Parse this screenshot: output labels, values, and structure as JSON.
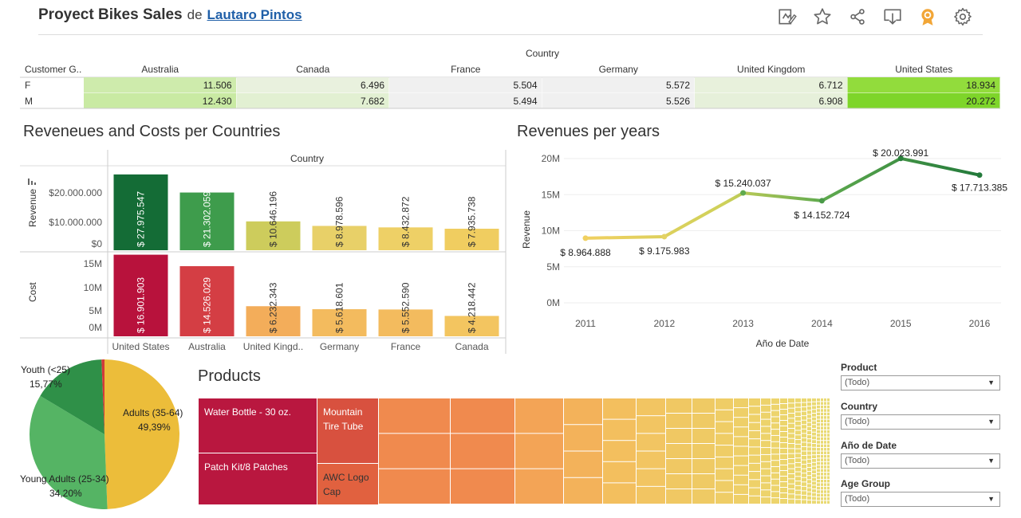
{
  "header": {
    "title": "Proyect Bikes Sales",
    "by": "de",
    "author": "Lautaro Pintos"
  },
  "toolbar": {
    "icons": [
      "edit-icon",
      "star-icon",
      "share-icon",
      "download-icon",
      "badge-icon",
      "gear-icon"
    ]
  },
  "crosstab": {
    "group_label": "Country",
    "row_header": "Customer G..",
    "countries": [
      "Australia",
      "Canada",
      "France",
      "Germany",
      "United Kingdom",
      "United States"
    ],
    "rows": [
      {
        "label": "F",
        "values": [
          "11.506",
          "6.496",
          "5.504",
          "5.572",
          "6.712",
          "18.934"
        ]
      },
      {
        "label": "M",
        "values": [
          "12.430",
          "7.682",
          "5.494",
          "5.526",
          "6.908",
          "20.272"
        ]
      }
    ],
    "raw": [
      [
        11506,
        6496,
        5504,
        5572,
        6712,
        18934
      ],
      [
        12430,
        7682,
        5494,
        5526,
        6908,
        20272
      ]
    ]
  },
  "bars": {
    "title": "Reveneues and Costs per Countries",
    "header": "Country",
    "revenue_label": "Revenue",
    "cost_label": "Cost",
    "revenue_ticks": [
      "$20.000.000",
      "$10.000.000",
      "$0"
    ],
    "cost_ticks": [
      "15M",
      "10M",
      "5M",
      "0M"
    ],
    "categories": [
      "United States",
      "Australia",
      "United Kingd..",
      "Germany",
      "France",
      "Canada"
    ]
  },
  "line": {
    "title": "Revenues per years",
    "ylabel": "Revenue",
    "xlabel": "Año de Date",
    "yticks": [
      "20M",
      "15M",
      "10M",
      "5M",
      "0M"
    ]
  },
  "pie": {
    "labels": [
      {
        "name": "Youth (<25)",
        "pct": "15,77%"
      },
      {
        "name": "Adults (35-64)",
        "pct": "49,39%"
      },
      {
        "name": "Young Adults (25-34)",
        "pct": "34,20%"
      }
    ]
  },
  "treemap": {
    "title": "Products",
    "labels": [
      "Water Bottle - 30 oz.",
      "Patch Kit/8 Patches",
      "Mountain Tire Tube",
      "AWC Logo Cap"
    ]
  },
  "filters": [
    {
      "label": "Product",
      "value": "(Todo)"
    },
    {
      "label": "Country",
      "value": "(Todo)"
    },
    {
      "label": "Año de Date",
      "value": "(Todo)"
    },
    {
      "label": "Age Group",
      "value": "(Todo)"
    }
  ],
  "chart_data": [
    {
      "type": "bar",
      "title": "Reveneues and Costs per Countries",
      "categories": [
        "United States",
        "Australia",
        "United Kingd..",
        "Germany",
        "France",
        "Canada"
      ],
      "series": [
        {
          "name": "Revenue",
          "values": [
            27975547,
            21302059,
            10646196,
            8978596,
            8432872,
            7935738
          ],
          "labels": [
            "$ 27.975.547",
            "$ 21.302.059",
            "$ 10.646.196",
            "$ 8.978.596",
            "$ 8.432.872",
            "$ 7.935.738"
          ],
          "colors": [
            "#146c36",
            "#3e9c4c",
            "#cdcc5c",
            "#e8d068",
            "#eed066",
            "#f0cd60"
          ]
        },
        {
          "name": "Cost",
          "values": [
            16901903,
            14526029,
            6232343,
            5618601,
            5552590,
            4218442
          ],
          "labels": [
            "$ 16.901.903",
            "$ 14.526.029",
            "$ 6.232.343",
            "$ 5.618.601",
            "$ 5.552.590",
            "$ 4.218.442"
          ],
          "colors": [
            "#b8123c",
            "#d43e44",
            "#f3ad5a",
            "#f3bb5e",
            "#f3bb5e",
            "#f3c560"
          ]
        }
      ],
      "ylim_revenue": [
        0,
        30000000
      ],
      "ylim_cost": [
        0,
        17000000
      ]
    },
    {
      "type": "line",
      "title": "Revenues per years",
      "x": [
        2011,
        2012,
        2013,
        2014,
        2015,
        2016
      ],
      "values": [
        8964888,
        9175983,
        15240037,
        14152724,
        20023991,
        17713385
      ],
      "labels": [
        "$ 8.964.888",
        "$ 9.175.983",
        "$ 15.240.037",
        "$ 14.152.724",
        "$ 20.023.991",
        "$ 17.713.385"
      ],
      "xlabel": "Año de Date",
      "ylabel": "Revenue",
      "ylim": [
        0,
        20000000
      ]
    },
    {
      "type": "pie",
      "categories": [
        "Adults (35-64)",
        "Young Adults (25-34)",
        "Youth (<25)",
        "Other"
      ],
      "values": [
        49.39,
        34.2,
        15.77,
        0.64
      ],
      "colors": [
        "#ecbd3a",
        "#55b464",
        "#2f9048",
        "#d23a3a"
      ]
    }
  ]
}
